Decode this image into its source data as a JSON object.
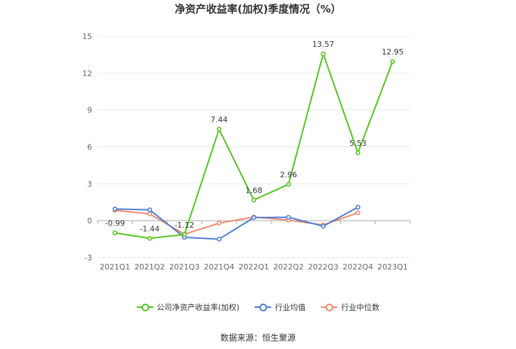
{
  "title": "净资产收益率(加权)季度情况（%）",
  "source": "数据来源：恒生聚源",
  "chart_data": {
    "type": "line",
    "categories": [
      "2021Q1",
      "2021Q2",
      "2021Q3",
      "2021Q4",
      "2022Q1",
      "2022Q2",
      "2022Q3",
      "2022Q4",
      "2023Q1"
    ],
    "ylim": [
      -3,
      15
    ],
    "yticks": [
      -3,
      0,
      3,
      6,
      9,
      12,
      15
    ],
    "grid": true,
    "legend_position": "bottom",
    "series": [
      {
        "name": "公司净资产收益率(加权)",
        "color": "#52c41a",
        "values": [
          -0.99,
          -1.44,
          -1.12,
          7.44,
          1.68,
          2.96,
          13.57,
          5.53,
          12.95
        ],
        "labels": true
      },
      {
        "name": "行业均值",
        "color": "#4a7bd6",
        "values": [
          0.95,
          0.88,
          -1.35,
          -1.5,
          0.25,
          0.28,
          -0.45,
          1.1,
          null
        ],
        "labels": false
      },
      {
        "name": "行业中位数",
        "color": "#f0876a",
        "values": [
          0.85,
          0.55,
          -1.1,
          -0.2,
          0.3,
          0.05,
          -0.35,
          0.65,
          null
        ],
        "labels": false
      }
    ]
  }
}
